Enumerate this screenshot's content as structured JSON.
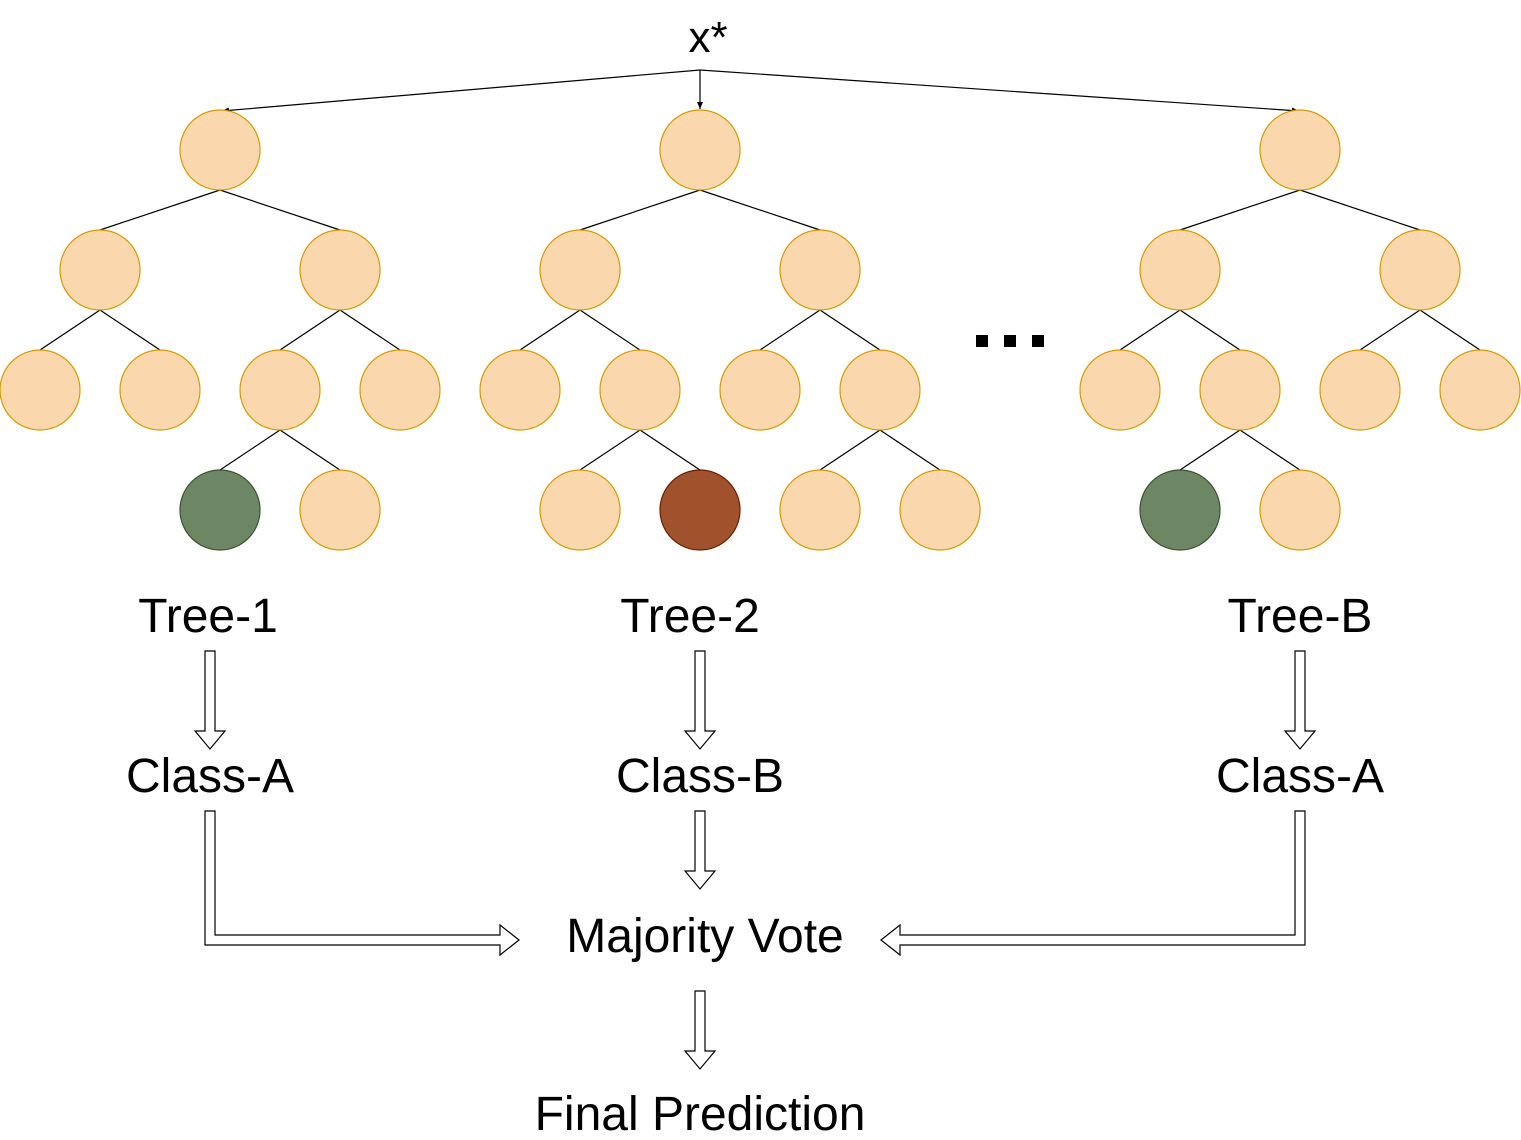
{
  "input_label": "x*",
  "ellipsis": "...",
  "colors": {
    "node_fill": "#fad7ac",
    "node_stroke": "#d79b00",
    "class_a_leaf": "#6d8764",
    "class_b_leaf": "#a0522d",
    "line": "#000000"
  },
  "trees": [
    {
      "name": "Tree-1",
      "prediction": "Class-A",
      "selected_leaf_class": "A"
    },
    {
      "name": "Tree-2",
      "prediction": "Class-B",
      "selected_leaf_class": "B"
    },
    {
      "name": "Tree-B",
      "prediction": "Class-A",
      "selected_leaf_class": "A"
    }
  ],
  "aggregation": {
    "label": "Majority Vote",
    "output": "Final Prediction"
  }
}
